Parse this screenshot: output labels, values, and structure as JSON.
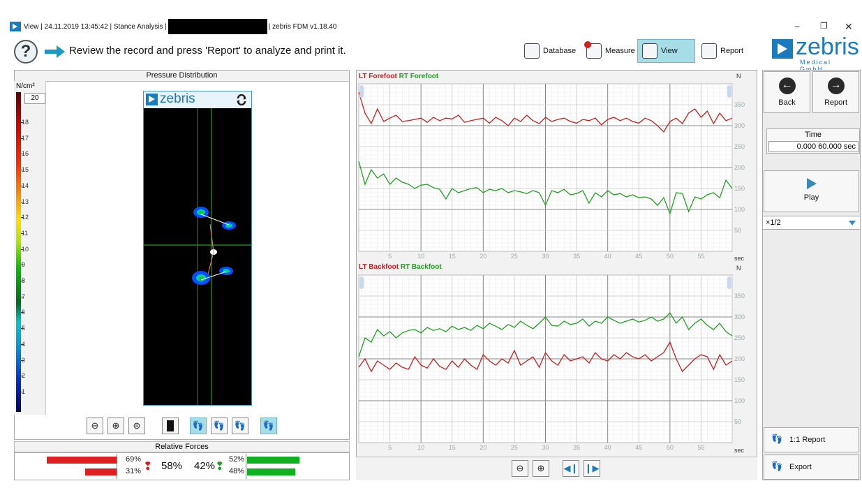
{
  "window": {
    "title_left": "View | 24.11.2019 13:45:42 | Stance Analysis |",
    "title_right": "| zebris FDM v1.18.40",
    "minimize_glyph": "−",
    "restore_glyph": "❐",
    "close_glyph": "✕"
  },
  "instruction": {
    "help_glyph": "?",
    "text": "Review the record and press 'Report' to analyze and print it."
  },
  "nav": [
    {
      "label": "Database",
      "icon": "database-icon"
    },
    {
      "label": "Measure",
      "icon": "measure-icon"
    },
    {
      "label": "View",
      "icon": "view-icon",
      "active": true
    },
    {
      "label": "Report",
      "icon": "report-icon"
    }
  ],
  "logo": {
    "word": "zebris",
    "sub": "Medical GmbH"
  },
  "pressure_panel": {
    "title": "Pressure Distribution",
    "unit": "N/cm²",
    "max_value": "20",
    "scale_ticks": [
      "18",
      "17",
      "16",
      "15",
      "14",
      "13",
      "12",
      "11",
      "10",
      "9",
      "8",
      "7",
      "6",
      "5",
      "4",
      "3",
      "2",
      "1"
    ],
    "image_brand": "zebris"
  },
  "relative_forces": {
    "title": "Relative Forces",
    "left_top": "69%",
    "left_bottom": "31%",
    "left_total": "58%",
    "right_total": "42%",
    "right_top": "52%",
    "right_bottom": "48%",
    "left_top_fraction": 0.69,
    "left_bottom_fraction": 0.31,
    "right_top_fraction": 0.52,
    "right_bottom_fraction": 0.48
  },
  "charts": {
    "forefoot": {
      "legend_left": "LT Forefoot",
      "legend_right": "RT Forefoot"
    },
    "backfoot": {
      "legend_left": "LT Backfoot",
      "legend_right": "RT Backfoot"
    },
    "unit": "N",
    "xunit": "sec"
  },
  "chart_data": [
    {
      "type": "line",
      "title": "",
      "xlabel": "sec",
      "ylabel": "N",
      "xlim": [
        0,
        60
      ],
      "ylim": [
        0,
        400
      ],
      "x_ticks": [
        5,
        10,
        15,
        20,
        25,
        30,
        35,
        40,
        45,
        50,
        55
      ],
      "y_ticks": [
        50,
        100,
        150,
        200,
        250,
        300,
        350
      ],
      "grid": true,
      "series": [
        {
          "name": "LT Forefoot",
          "color": "#c82020",
          "x": [
            0,
            1,
            2,
            3,
            4,
            5,
            6,
            7,
            8,
            9,
            10,
            11,
            12,
            13,
            14,
            15,
            16,
            17,
            18,
            19,
            20,
            21,
            22,
            23,
            24,
            25,
            26,
            27,
            28,
            29,
            30,
            31,
            32,
            33,
            34,
            35,
            36,
            37,
            38,
            39,
            40,
            41,
            42,
            43,
            44,
            45,
            46,
            47,
            48,
            49,
            50,
            51,
            52,
            53,
            54,
            55,
            56,
            57,
            58,
            59,
            60
          ],
          "values": [
            380,
            330,
            305,
            340,
            310,
            318,
            325,
            310,
            312,
            315,
            318,
            308,
            320,
            312,
            318,
            316,
            325,
            308,
            312,
            315,
            318,
            306,
            320,
            312,
            300,
            318,
            310,
            325,
            312,
            305,
            320,
            310,
            315,
            318,
            310,
            306,
            315,
            312,
            318,
            302,
            315,
            320,
            312,
            318,
            310,
            306,
            318,
            312,
            300,
            285,
            310,
            318,
            305,
            330,
            340,
            320,
            335,
            305,
            330,
            312,
            318
          ]
        },
        {
          "name": "RT Forefoot",
          "color": "#20a020",
          "x": [
            0,
            1,
            2,
            3,
            4,
            5,
            6,
            7,
            8,
            9,
            10,
            11,
            12,
            13,
            14,
            15,
            16,
            17,
            18,
            19,
            20,
            21,
            22,
            23,
            24,
            25,
            26,
            27,
            28,
            29,
            30,
            31,
            32,
            33,
            34,
            35,
            36,
            37,
            38,
            39,
            40,
            41,
            42,
            43,
            44,
            45,
            46,
            47,
            48,
            49,
            50,
            51,
            52,
            53,
            54,
            55,
            56,
            57,
            58,
            59,
            60
          ],
          "values": [
            215,
            160,
            195,
            175,
            185,
            160,
            175,
            165,
            160,
            150,
            158,
            160,
            152,
            148,
            125,
            150,
            140,
            145,
            150,
            152,
            140,
            148,
            145,
            150,
            140,
            145,
            142,
            138,
            145,
            140,
            110,
            145,
            140,
            148,
            135,
            138,
            145,
            115,
            140,
            130,
            145,
            135,
            138,
            130,
            135,
            128,
            130,
            125,
            110,
            128,
            90,
            140,
            138,
            95,
            130,
            125,
            135,
            140,
            128,
            170,
            150
          ]
        }
      ]
    },
    {
      "type": "line",
      "title": "",
      "xlabel": "sec",
      "ylabel": "N",
      "xlim": [
        0,
        60
      ],
      "ylim": [
        0,
        400
      ],
      "x_ticks": [
        5,
        10,
        15,
        20,
        25,
        30,
        35,
        40,
        45,
        50,
        55
      ],
      "y_ticks": [
        50,
        100,
        150,
        200,
        250,
        300,
        350
      ],
      "grid": true,
      "series": [
        {
          "name": "LT Backfoot",
          "color": "#c82020",
          "x": [
            0,
            1,
            2,
            3,
            4,
            5,
            6,
            7,
            8,
            9,
            10,
            11,
            12,
            13,
            14,
            15,
            16,
            17,
            18,
            19,
            20,
            21,
            22,
            23,
            24,
            25,
            26,
            27,
            28,
            29,
            30,
            31,
            32,
            33,
            34,
            35,
            36,
            37,
            38,
            39,
            40,
            41,
            42,
            43,
            44,
            45,
            46,
            47,
            48,
            49,
            50,
            51,
            52,
            53,
            54,
            55,
            56,
            57,
            58,
            59,
            60
          ],
          "values": [
            180,
            200,
            170,
            195,
            185,
            175,
            190,
            180,
            175,
            205,
            185,
            178,
            200,
            182,
            175,
            195,
            180,
            200,
            185,
            175,
            210,
            195,
            185,
            200,
            190,
            220,
            185,
            195,
            205,
            180,
            215,
            195,
            185,
            210,
            195,
            200,
            205,
            190,
            215,
            200,
            195,
            210,
            200,
            215,
            205,
            200,
            210,
            195,
            205,
            215,
            240,
            200,
            170,
            185,
            200,
            210,
            205,
            175,
            210,
            185,
            195
          ]
        },
        {
          "name": "RT Backfoot",
          "color": "#20a020",
          "x": [
            0,
            1,
            2,
            3,
            4,
            5,
            6,
            7,
            8,
            9,
            10,
            11,
            12,
            13,
            14,
            15,
            16,
            17,
            18,
            19,
            20,
            21,
            22,
            23,
            24,
            25,
            26,
            27,
            28,
            29,
            30,
            31,
            32,
            33,
            34,
            35,
            36,
            37,
            38,
            39,
            40,
            41,
            42,
            43,
            44,
            45,
            46,
            47,
            48,
            49,
            50,
            51,
            52,
            53,
            54,
            55,
            56,
            57,
            58,
            59,
            60
          ],
          "values": [
            205,
            250,
            240,
            270,
            255,
            265,
            250,
            262,
            268,
            270,
            262,
            275,
            268,
            272,
            265,
            278,
            270,
            275,
            268,
            280,
            272,
            285,
            278,
            270,
            282,
            275,
            290,
            280,
            272,
            285,
            300,
            280,
            278,
            290,
            282,
            285,
            295,
            278,
            290,
            285,
            300,
            292,
            285,
            290,
            295,
            288,
            292,
            300,
            290,
            295,
            310,
            285,
            300,
            270,
            285,
            295,
            280,
            270,
            285,
            265,
            255
          ]
        }
      ]
    }
  ],
  "right_panel": {
    "back_label": "Back",
    "report_label": "Report",
    "time_label": "Time",
    "time_value": "0.000 60.000 sec",
    "play_label": "Play",
    "speed_value": "×1/2",
    "one_to_one_label": "1:1 Report",
    "export_label": "Export"
  }
}
